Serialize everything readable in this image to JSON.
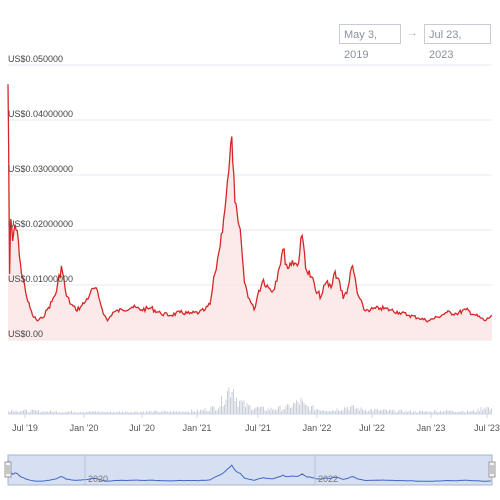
{
  "date_range": {
    "from": "May 3, 2019",
    "arrow": "→",
    "to": "Jul 23, 2023"
  },
  "colors": {
    "price_line": "#d62728",
    "price_fill": "#fbe3e3",
    "volume": "#c9cfd8",
    "navigator_fill": "#d6e0f2",
    "navigator_line": "#3f68c5"
  },
  "chart_data": {
    "type": "line",
    "title": "",
    "ylabel": "",
    "xlabel": "",
    "ylim": [
      0,
      0.05
    ],
    "y_ticks": [
      "US$0.00",
      "US$0.01000000",
      "US$0.02000000",
      "US$0.03000000",
      "US$0.04000000",
      "US$0.050000"
    ],
    "x_ticks": [
      "Jul '19",
      "Jan '20",
      "Jul '20",
      "Jan '21",
      "Jul '21",
      "Jan '22",
      "Jul '22",
      "Jan '23",
      "Jul '23"
    ],
    "navigator_labels": [
      "2020",
      "2022"
    ],
    "grid": true,
    "price_series": {
      "x": [
        "2019-05-03",
        "2019-05-05",
        "2019-05-08",
        "2019-05-12",
        "2019-05-18",
        "2019-05-25",
        "2019-06-05",
        "2019-06-15",
        "2019-06-25",
        "2019-07-05",
        "2019-07-20",
        "2019-08-05",
        "2019-08-20",
        "2019-09-05",
        "2019-09-20",
        "2019-10-05",
        "2019-10-20",
        "2019-11-05",
        "2019-11-20",
        "2019-12-05",
        "2019-12-20",
        "2020-01-05",
        "2020-01-20",
        "2020-02-05",
        "2020-02-20",
        "2020-03-05",
        "2020-03-15",
        "2020-04-01",
        "2020-05-01",
        "2020-06-01",
        "2020-07-01",
        "2020-08-01",
        "2020-09-01",
        "2020-10-01",
        "2020-11-01",
        "2020-12-01",
        "2021-01-01",
        "2021-01-20",
        "2021-02-05",
        "2021-02-20",
        "2021-03-05",
        "2021-03-20",
        "2021-04-05",
        "2021-04-15",
        "2021-04-25",
        "2021-05-05",
        "2021-05-15",
        "2021-05-25",
        "2021-06-10",
        "2021-06-25",
        "2021-07-10",
        "2021-07-25",
        "2021-08-10",
        "2021-08-25",
        "2021-09-10",
        "2021-09-25",
        "2021-10-10",
        "2021-10-25",
        "2021-11-10",
        "2021-11-25",
        "2021-12-10",
        "2021-12-25",
        "2022-01-10",
        "2022-01-25",
        "2022-02-10",
        "2022-02-25",
        "2022-03-10",
        "2022-03-25",
        "2022-04-05",
        "2022-04-20",
        "2022-05-05",
        "2022-05-20",
        "2022-06-10",
        "2022-07-01",
        "2022-08-01",
        "2022-09-01",
        "2022-10-01",
        "2022-11-01",
        "2022-12-01",
        "2023-01-01",
        "2023-02-01",
        "2023-03-01",
        "2023-04-01",
        "2023-05-01",
        "2023-06-01",
        "2023-07-01",
        "2023-07-23"
      ],
      "y": [
        0.0465,
        0.036,
        0.012,
        0.022,
        0.018,
        0.021,
        0.018,
        0.012,
        0.01,
        0.007,
        0.0045,
        0.0035,
        0.004,
        0.0055,
        0.007,
        0.009,
        0.0135,
        0.008,
        0.0065,
        0.0055,
        0.006,
        0.007,
        0.0085,
        0.0095,
        0.007,
        0.0045,
        0.0035,
        0.005,
        0.0055,
        0.006,
        0.0055,
        0.0058,
        0.0048,
        0.0045,
        0.005,
        0.0048,
        0.005,
        0.0055,
        0.0065,
        0.012,
        0.016,
        0.022,
        0.0305,
        0.037,
        0.025,
        0.0215,
        0.018,
        0.0105,
        0.0075,
        0.0055,
        0.009,
        0.011,
        0.0095,
        0.009,
        0.0125,
        0.0165,
        0.013,
        0.0145,
        0.0135,
        0.019,
        0.0125,
        0.0115,
        0.0085,
        0.008,
        0.0105,
        0.0095,
        0.0125,
        0.0105,
        0.0075,
        0.0095,
        0.0135,
        0.0085,
        0.0055,
        0.0055,
        0.0058,
        0.0055,
        0.005,
        0.0045,
        0.004,
        0.0035,
        0.0042,
        0.005,
        0.0048,
        0.0055,
        0.0045,
        0.0035,
        0.0045
      ]
    },
    "volume_series": {
      "x": [
        "2019-05-03",
        "2019-07-01",
        "2019-10-01",
        "2020-01-01",
        "2020-04-01",
        "2020-07-01",
        "2020-10-01",
        "2021-01-01",
        "2021-03-01",
        "2021-04-15",
        "2021-05-01",
        "2021-06-01",
        "2021-08-01",
        "2021-10-01",
        "2021-11-20",
        "2021-12-01",
        "2022-01-15",
        "2022-03-01",
        "2022-04-20",
        "2022-06-01",
        "2022-09-01",
        "2022-12-01",
        "2023-03-01",
        "2023-06-01",
        "2023-07-01",
        "2023-07-23"
      ],
      "y": [
        0.1,
        0.08,
        0.06,
        0.06,
        0.05,
        0.06,
        0.06,
        0.08,
        0.18,
        0.75,
        0.35,
        0.2,
        0.12,
        0.15,
        0.32,
        0.2,
        0.12,
        0.1,
        0.18,
        0.12,
        0.08,
        0.06,
        0.08,
        0.07,
        0.2,
        0.08
      ]
    }
  }
}
